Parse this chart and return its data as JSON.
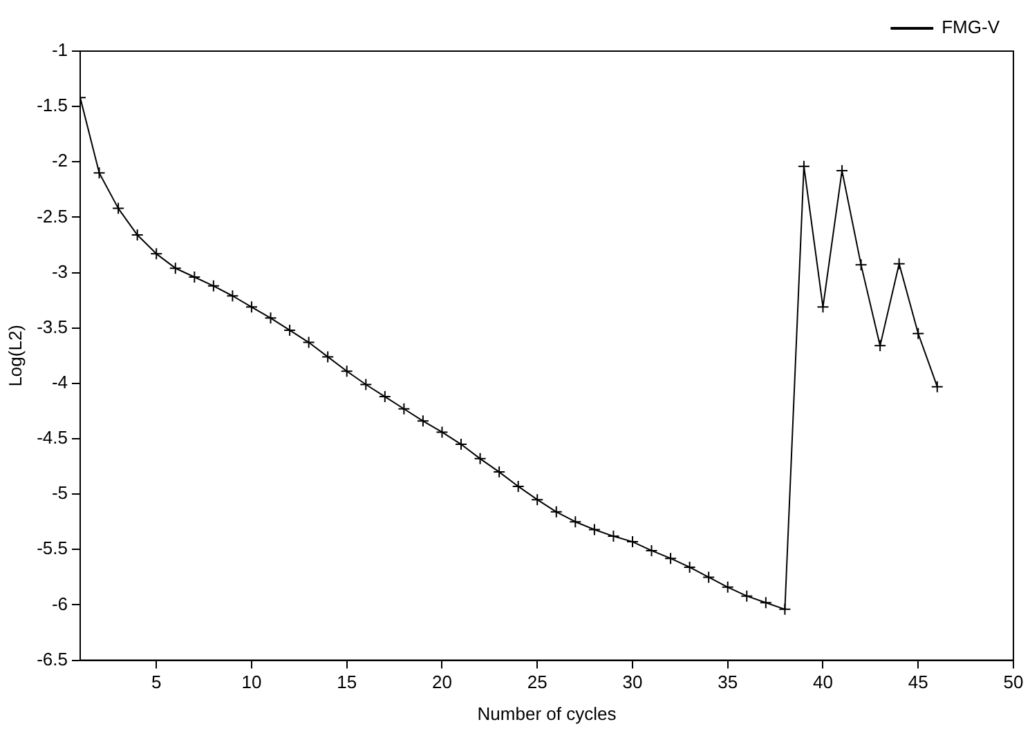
{
  "chart_data": {
    "type": "line",
    "xlabel": "Number of cycles",
    "ylabel": "Log(L2)",
    "x": [
      1,
      2,
      3,
      4,
      5,
      6,
      7,
      8,
      9,
      10,
      11,
      12,
      13,
      14,
      15,
      16,
      17,
      18,
      19,
      20,
      21,
      22,
      23,
      24,
      25,
      26,
      27,
      28,
      29,
      30,
      31,
      32,
      33,
      34,
      35,
      36,
      37,
      38,
      39,
      40,
      41,
      42,
      43,
      44,
      45,
      46
    ],
    "series": [
      {
        "name": "FMG-V",
        "color": "#000000",
        "values": [
          -1.42,
          -2.1,
          -2.42,
          -2.66,
          -2.83,
          -2.96,
          -3.04,
          -3.12,
          -3.21,
          -3.31,
          -3.41,
          -3.52,
          -3.63,
          -3.76,
          -3.89,
          -4.01,
          -4.12,
          -4.23,
          -4.34,
          -4.44,
          -4.55,
          -4.68,
          -4.8,
          -4.93,
          -5.05,
          -5.16,
          -5.25,
          -5.32,
          -5.38,
          -5.43,
          -5.51,
          -5.58,
          -5.66,
          -5.75,
          -5.84,
          -5.92,
          -5.98,
          -6.04,
          -2.04,
          -3.31,
          -2.08,
          -2.93,
          -3.66,
          -2.92,
          -3.55,
          -4.03
        ]
      }
    ],
    "xlim": [
      1,
      50
    ],
    "xticks": [
      5,
      10,
      15,
      20,
      25,
      30,
      35,
      40,
      45,
      50
    ],
    "ylim": [
      -6.5,
      -1
    ],
    "yticks": [
      -6.5,
      -6,
      -5.5,
      -5,
      -4.5,
      -4,
      -3.5,
      -3,
      -2.5,
      -2,
      -1.5,
      -1
    ],
    "grid": false,
    "legend": "top right",
    "marker": "cross",
    "line_style": "solid"
  }
}
